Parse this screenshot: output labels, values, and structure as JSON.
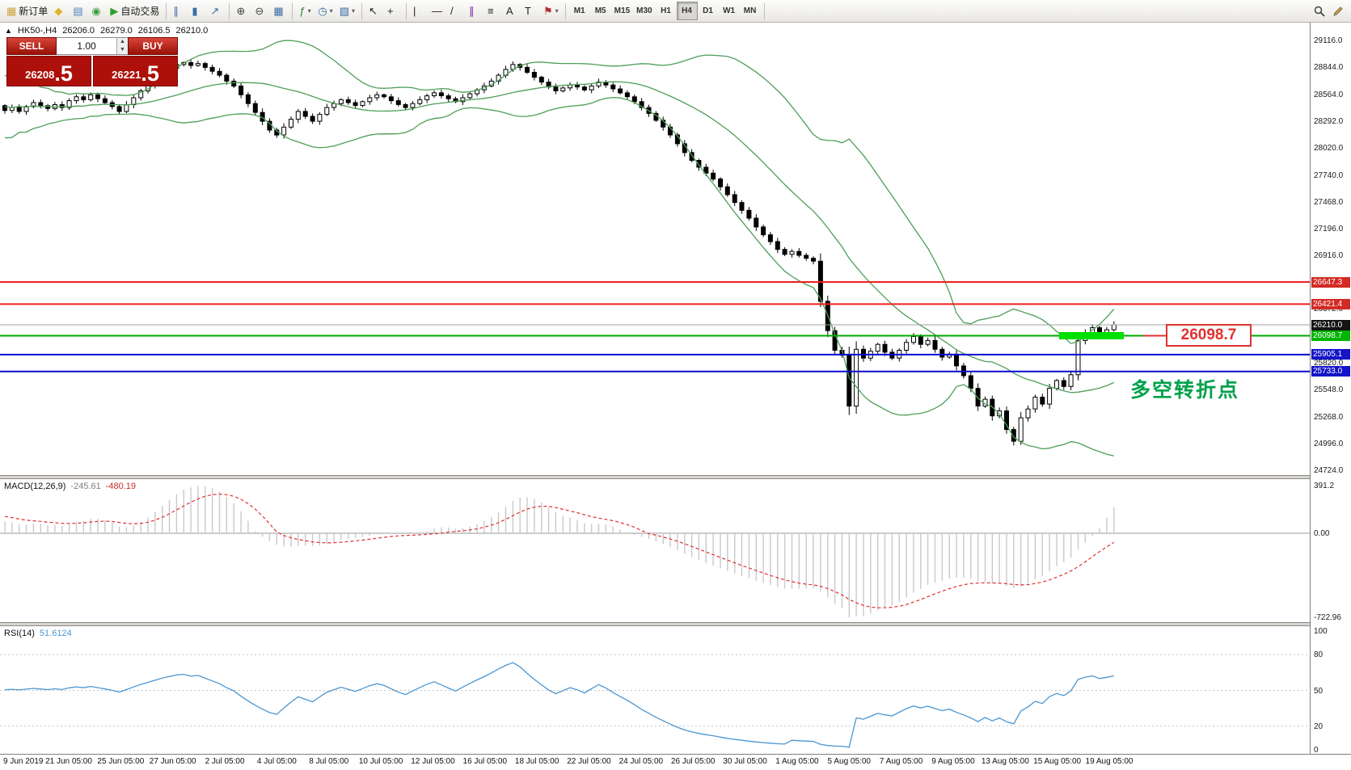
{
  "toolbar": {
    "items": [
      {
        "name": "new-order-button",
        "icon": "new-order-icon",
        "glyph": "▦",
        "glyph_color": "#caa53d",
        "label": "新订单"
      },
      {
        "name": "alerts-button",
        "icon": "alert-icon",
        "glyph": "◆",
        "glyph_color": "#e3b32a"
      },
      {
        "name": "mailbox-button",
        "icon": "mail-icon",
        "glyph": "▤",
        "glyph_color": "#4f81bd"
      },
      {
        "name": "community-button",
        "icon": "community-icon",
        "glyph": "◉",
        "glyph_color": "#3f9e3f"
      },
      {
        "name": "autotrading-button",
        "icon": "play-icon",
        "glyph": "▶",
        "glyph_color": "#2e9e2e",
        "label": "自动交易"
      },
      {
        "sep": true
      },
      {
        "name": "bar-chart-button",
        "icon": "bar-chart-icon",
        "glyph": "∥",
        "glyph_color": "#3a6ea5"
      },
      {
        "name": "candlestick-chart-button",
        "icon": "candlestick-icon",
        "glyph": "▮",
        "glyph_color": "#3a6ea5"
      },
      {
        "name": "line-chart-button",
        "icon": "line-chart-icon",
        "glyph": "↗",
        "glyph_color": "#3a6ea5"
      },
      {
        "sep": true
      },
      {
        "name": "zoom-in-button",
        "icon": "zoom-in-icon",
        "glyph": "⊕",
        "glyph_color": "#444444"
      },
      {
        "name": "zoom-out-button",
        "icon": "zoom-out-icon",
        "glyph": "⊖",
        "glyph_color": "#444444"
      },
      {
        "name": "tile-windows-button",
        "icon": "tile-windows-icon",
        "glyph": "▦",
        "glyph_color": "#3a6ea5"
      },
      {
        "sep": true
      },
      {
        "name": "indicators-button",
        "icon": "indicators-icon",
        "glyph": "ƒ",
        "glyph_color": "#2e7d32",
        "caret": true
      },
      {
        "name": "periods-button",
        "icon": "clock-icon",
        "glyph": "◷",
        "glyph_color": "#3a6ea5",
        "caret": true
      },
      {
        "name": "templates-button",
        "icon": "template-icon",
        "glyph": "▧",
        "glyph_color": "#3a6ea5",
        "caret": true
      },
      {
        "sep": true
      },
      {
        "name": "cursor-button",
        "icon": "cursor-icon",
        "glyph": "↖",
        "glyph_color": "#222222"
      },
      {
        "name": "crosshair-button",
        "icon": "crosshair-icon",
        "glyph": "+",
        "glyph_color": "#222222"
      },
      {
        "sep": true
      },
      {
        "name": "vertical-line-button",
        "icon": "vertical-line-icon",
        "glyph": "|",
        "glyph_color": "#222222"
      },
      {
        "name": "horizontal-line-button",
        "icon": "horizontal-line-icon",
        "glyph": "—",
        "glyph_color": "#222222"
      },
      {
        "name": "trendline-button",
        "icon": "trendline-icon",
        "glyph": "/",
        "glyph_color": "#222222"
      },
      {
        "name": "channel-button",
        "icon": "channel-icon",
        "glyph": "∥",
        "glyph_color": "#7a1fa2"
      },
      {
        "name": "fibonacci-button",
        "icon": "fibonacci-icon",
        "glyph": "≡",
        "glyph_color": "#222222"
      },
      {
        "name": "text-button",
        "icon": "text-icon",
        "glyph": "A",
        "glyph_color": "#222222"
      },
      {
        "name": "text-label-button",
        "icon": "text-label-icon",
        "glyph": "T",
        "glyph_color": "#222222"
      },
      {
        "name": "arrows-button",
        "icon": "flag-icon",
        "glyph": "⚑",
        "glyph_color": "#b33030",
        "caret": true
      },
      {
        "sep": true
      }
    ],
    "timeframes": [
      "M1",
      "M5",
      "M15",
      "M30",
      "H1",
      "H4",
      "D1",
      "W1",
      "MN"
    ],
    "active_timeframe": "H4"
  },
  "symbol_header": {
    "collapse_icon": "▲",
    "symbol": "HK50-,H4",
    "open": "26206.0",
    "high": "26279.0",
    "low": "26106.5",
    "close": "26210.0"
  },
  "trade_panel": {
    "sell_label": "SELL",
    "buy_label": "BUY",
    "volume": "1.00",
    "sell_price": "26208.5",
    "buy_price": "26221.5"
  },
  "price_axis": {
    "ticks": [
      {
        "v": 29116,
        "t": "29116.0"
      },
      {
        "v": 28844,
        "t": "28844.0"
      },
      {
        "v": 28564,
        "t": "28564.0"
      },
      {
        "v": 28292,
        "t": "28292.0"
      },
      {
        "v": 28020,
        "t": "28020.0"
      },
      {
        "v": 27740,
        "t": "27740.0"
      },
      {
        "v": 27468,
        "t": "27468.0"
      },
      {
        "v": 27196,
        "t": "27196.0"
      },
      {
        "v": 26916,
        "t": "26916.0"
      },
      {
        "v": 26372,
        "t": "26372.0"
      },
      {
        "v": 25820,
        "t": "25820.0"
      },
      {
        "v": 25548,
        "t": "25548.0"
      },
      {
        "v": 25268,
        "t": "25268.0"
      },
      {
        "v": 24996,
        "t": "24996.0"
      },
      {
        "v": 24724,
        "t": "24724.0"
      }
    ],
    "markers": [
      {
        "v": 26647.3,
        "t": "26647.3",
        "bg": "#d32b25",
        "line": {
          "color": "#f01f1f",
          "width": 2
        }
      },
      {
        "v": 26421.4,
        "t": "26421.4",
        "bg": "#d32b25",
        "line": {
          "color": "#f01f1f",
          "width": 2
        }
      },
      {
        "v": 26210.0,
        "t": "26210.0",
        "bg": "#141414",
        "line": {
          "color": "#a0a0a0",
          "width": 1
        }
      },
      {
        "v": 26098.7,
        "t": "26098.7",
        "bg": "#00b400",
        "line": {
          "color": "#00a800",
          "width": 2
        }
      },
      {
        "v": 25905.1,
        "t": "25905.1",
        "bg": "#1414c8",
        "line": {
          "color": "#0a0ad0",
          "width": 2
        }
      },
      {
        "v": 25733.0,
        "t": "25733.0",
        "bg": "#1414c8",
        "line": {
          "color": "#0a0ad0",
          "width": 2
        }
      }
    ],
    "range": {
      "high": 29116,
      "low": 24724
    }
  },
  "annotations": {
    "callout": {
      "text": "26098.7",
      "color": "#e03131"
    },
    "note": {
      "text": "多空转折点",
      "color": "#00a14b"
    },
    "highlight": {
      "level": 26098.7,
      "color": "#00e000"
    }
  },
  "macd_panel": {
    "label": "MACD(12,26,9)",
    "value_main": "-245.61",
    "value_signal": "-480.19",
    "axis": [
      "391.2",
      "0.00",
      "-722.96"
    ],
    "histogram_color": "#c9c9c9",
    "signal_color": "#e03030"
  },
  "rsi_panel": {
    "label": "RSI(14)",
    "value": "51.6124",
    "levels": [
      {
        "v": 100,
        "t": "100"
      },
      {
        "v": 80,
        "t": "80"
      },
      {
        "v": 50,
        "t": "50"
      },
      {
        "v": 20,
        "t": "20"
      },
      {
        "v": 0,
        "t": "0"
      }
    ],
    "line_color": "#4a96d2"
  },
  "colors": {
    "bollinger": "#4e9e58",
    "candle_up_fill": "#ffffff",
    "candle_down_fill": "#000000",
    "candle_stroke": "#000000"
  },
  "chart_data": {
    "type": "candlestick",
    "title": "HK50-,H4",
    "symbol": "HK50-",
    "timeframe": "H4",
    "ylim": [
      24724,
      29116
    ],
    "grid": false,
    "bollinger": {
      "period": 20,
      "deviation": 2
    },
    "pre_closes": [
      28150,
      28700,
      28050,
      28650,
      27980,
      28600,
      28080,
      28700,
      28150,
      28750,
      28200,
      28650,
      28100,
      28600,
      28200,
      28700,
      28250,
      28650,
      28300,
      28600,
      28350,
      28550,
      28300,
      28500,
      28350,
      28550,
      28380,
      28500,
      28400,
      28450
    ],
    "closes": [
      28400,
      28430,
      28390,
      28440,
      28480,
      28450,
      28420,
      28460,
      28430,
      28500,
      28540,
      28510,
      28560,
      28520,
      28480,
      28440,
      28390,
      28460,
      28530,
      28600,
      28660,
      28720,
      28780,
      28830,
      28870,
      28890,
      28860,
      28880,
      28840,
      28800,
      28760,
      28700,
      28650,
      28560,
      28470,
      28380,
      28290,
      28200,
      28150,
      28230,
      28310,
      28390,
      28340,
      28290,
      28360,
      28430,
      28470,
      28510,
      28480,
      28450,
      28490,
      28530,
      28560,
      28540,
      28500,
      28460,
      28430,
      28470,
      28510,
      28550,
      28580,
      28550,
      28520,
      28490,
      28530,
      28570,
      28610,
      28650,
      28700,
      28760,
      28820,
      28870,
      28840,
      28790,
      28740,
      28690,
      28640,
      28600,
      28630,
      28660,
      28640,
      28610,
      28650,
      28690,
      28660,
      28620,
      28580,
      28540,
      28490,
      28430,
      28370,
      28300,
      28230,
      28150,
      28060,
      27970,
      27890,
      27820,
      27760,
      27700,
      27620,
      27540,
      27460,
      27380,
      27300,
      27210,
      27130,
      27060,
      26980,
      26930,
      26960,
      26920,
      26890,
      26860,
      26450,
      26150,
      25950,
      25900,
      25380,
      25960,
      25870,
      25940,
      26010,
      25930,
      25870,
      25950,
      26030,
      26090,
      26010,
      26050,
      25960,
      25880,
      25910,
      25790,
      25690,
      25560,
      25380,
      25450,
      25280,
      25330,
      25140,
      25020,
      25260,
      25350,
      25470,
      25400,
      25560,
      25640,
      25580,
      25700,
      26050,
      26130,
      26180,
      26120,
      26160,
      26210
    ],
    "x_labels": [
      "9 Jun 2019",
      "21 Jun 05:00",
      "25 Jun 05:00",
      "27 Jun 05:00",
      "2 Jul 05:00",
      "4 Jul 05:00",
      "8 Jul 05:00",
      "10 Jul 05:00",
      "12 Jul 05:00",
      "16 Jul 05:00",
      "18 Jul 05:00",
      "22 Jul 05:00",
      "24 Jul 05:00",
      "26 Jul 05:00",
      "30 Jul 05:00",
      "1 Aug 05:00",
      "5 Aug 05:00",
      "7 Aug 05:00",
      "9 Aug 05:00",
      "13 Aug 05:00",
      "15 Aug 05:00",
      "19 Aug 05:00"
    ]
  }
}
